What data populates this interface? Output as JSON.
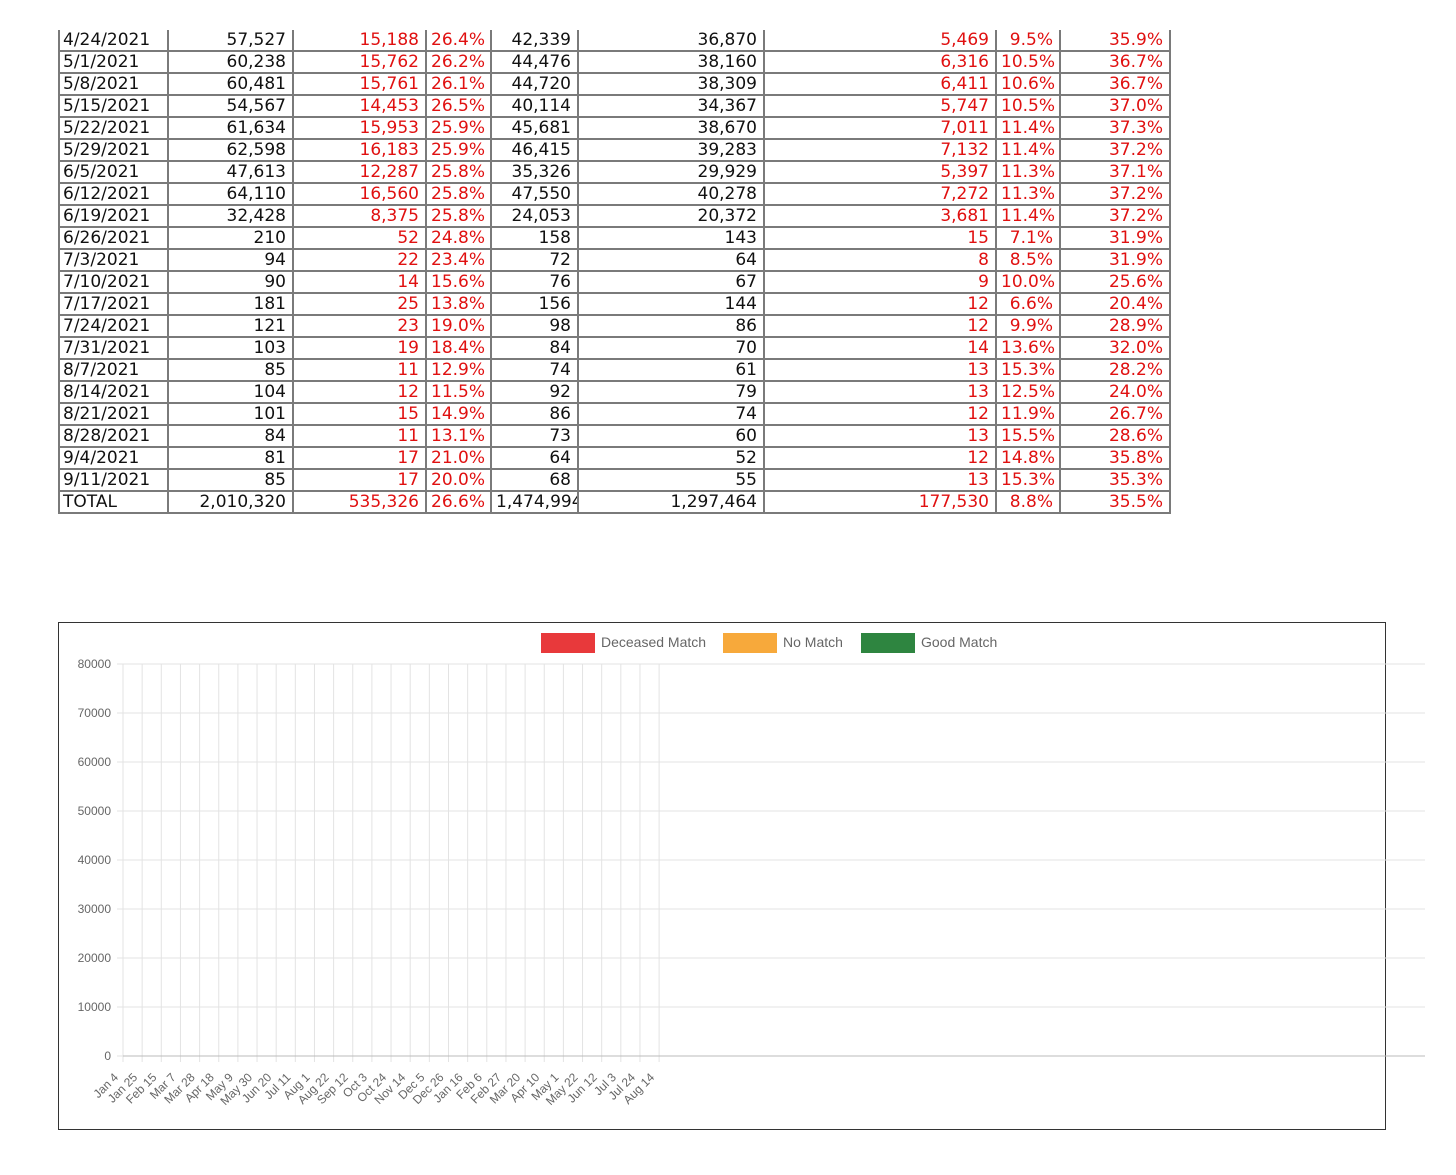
{
  "table": {
    "rows": [
      [
        "4/24/2021",
        "57,527",
        "15,188",
        "26.4%",
        "42,339",
        "36,870",
        "5,469",
        "9.5%",
        "35.9%"
      ],
      [
        "5/1/2021",
        "60,238",
        "15,762",
        "26.2%",
        "44,476",
        "38,160",
        "6,316",
        "10.5%",
        "36.7%"
      ],
      [
        "5/8/2021",
        "60,481",
        "15,761",
        "26.1%",
        "44,720",
        "38,309",
        "6,411",
        "10.6%",
        "36.7%"
      ],
      [
        "5/15/2021",
        "54,567",
        "14,453",
        "26.5%",
        "40,114",
        "34,367",
        "5,747",
        "10.5%",
        "37.0%"
      ],
      [
        "5/22/2021",
        "61,634",
        "15,953",
        "25.9%",
        "45,681",
        "38,670",
        "7,011",
        "11.4%",
        "37.3%"
      ],
      [
        "5/29/2021",
        "62,598",
        "16,183",
        "25.9%",
        "46,415",
        "39,283",
        "7,132",
        "11.4%",
        "37.2%"
      ],
      [
        "6/5/2021",
        "47,613",
        "12,287",
        "25.8%",
        "35,326",
        "29,929",
        "5,397",
        "11.3%",
        "37.1%"
      ],
      [
        "6/12/2021",
        "64,110",
        "16,560",
        "25.8%",
        "47,550",
        "40,278",
        "7,272",
        "11.3%",
        "37.2%"
      ],
      [
        "6/19/2021",
        "32,428",
        "8,375",
        "25.8%",
        "24,053",
        "20,372",
        "3,681",
        "11.4%",
        "37.2%"
      ],
      [
        "6/26/2021",
        "210",
        "52",
        "24.8%",
        "158",
        "143",
        "15",
        "7.1%",
        "31.9%"
      ],
      [
        "7/3/2021",
        "94",
        "22",
        "23.4%",
        "72",
        "64",
        "8",
        "8.5%",
        "31.9%"
      ],
      [
        "7/10/2021",
        "90",
        "14",
        "15.6%",
        "76",
        "67",
        "9",
        "10.0%",
        "25.6%"
      ],
      [
        "7/17/2021",
        "181",
        "25",
        "13.8%",
        "156",
        "144",
        "12",
        "6.6%",
        "20.4%"
      ],
      [
        "7/24/2021",
        "121",
        "23",
        "19.0%",
        "98",
        "86",
        "12",
        "9.9%",
        "28.9%"
      ],
      [
        "7/31/2021",
        "103",
        "19",
        "18.4%",
        "84",
        "70",
        "14",
        "13.6%",
        "32.0%"
      ],
      [
        "8/7/2021",
        "85",
        "11",
        "12.9%",
        "74",
        "61",
        "13",
        "15.3%",
        "28.2%"
      ],
      [
        "8/14/2021",
        "104",
        "12",
        "11.5%",
        "92",
        "79",
        "13",
        "12.5%",
        "24.0%"
      ],
      [
        "8/21/2021",
        "101",
        "15",
        "14.9%",
        "86",
        "74",
        "12",
        "11.9%",
        "26.7%"
      ],
      [
        "8/28/2021",
        "84",
        "11",
        "13.1%",
        "73",
        "60",
        "13",
        "15.5%",
        "28.6%"
      ],
      [
        "9/4/2021",
        "81",
        "17",
        "21.0%",
        "64",
        "52",
        "12",
        "14.8%",
        "35.8%"
      ],
      [
        "9/11/2021",
        "85",
        "17",
        "20.0%",
        "68",
        "55",
        "13",
        "15.3%",
        "35.3%"
      ],
      [
        "TOTAL",
        "2,010,320",
        "535,326",
        "26.6%",
        "1,474,994",
        "1,297,464",
        "177,530",
        "8.8%",
        "35.5%"
      ]
    ],
    "text_color": "#111111",
    "highlight_color": "#e01010"
  },
  "chart_data": {
    "type": "bar",
    "stacked": true,
    "title": "",
    "xlabel": "",
    "ylabel": "",
    "ylim": [
      0,
      80000
    ],
    "y_ticks": [
      0,
      10000,
      20000,
      30000,
      40000,
      50000,
      60000,
      70000,
      80000
    ],
    "grid": true,
    "legend_position": "top",
    "x_tick_labels": [
      "Jan 4",
      "Jan 25",
      "Feb 15",
      "Mar 7",
      "Mar 28",
      "Apr 18",
      "May 9",
      "May 30",
      "Jun 20",
      "Jul 11",
      "Aug 1",
      "Aug 22",
      "Sep 12",
      "Oct 3",
      "Oct 24",
      "Nov 14",
      "Dec 5",
      "Dec 26",
      "Jan 16",
      "Feb 6",
      "Feb 27",
      "Mar 20",
      "Apr 10",
      "May 1",
      "May 22",
      "Jun 12",
      "Jul 3",
      "Jul 24",
      "Aug 14"
    ],
    "series": [
      {
        "name": "Deceased Match",
        "color": "#e8393b",
        "values": [
          0,
          0,
          0,
          0,
          0,
          0,
          0,
          0,
          0,
          0,
          0,
          0,
          0,
          0,
          0,
          0,
          0,
          0,
          0,
          0,
          0,
          0,
          0,
          0,
          0,
          0,
          0,
          0,
          0,
          0,
          0,
          0,
          0,
          0,
          0,
          0,
          0,
          0,
          0,
          0,
          0,
          0,
          0,
          0,
          0,
          0,
          0,
          0,
          0,
          0,
          0,
          0,
          0,
          0,
          0,
          0,
          0,
          0,
          0,
          0,
          0,
          0,
          0,
          0,
          0,
          0,
          0,
          0,
          0,
          0,
          0,
          0,
          0,
          0,
          0,
          0,
          0,
          0,
          0,
          0,
          0,
          0,
          0,
          0,
          0,
          0,
          0,
          0,
          0,
          0,
          0,
          0,
          0,
          0,
          0,
          0,
          0,
          0,
          0,
          0,
          0,
          0,
          0,
          0,
          0,
          0,
          0,
          0,
          0,
          0,
          0,
          0,
          0,
          0,
          0,
          0,
          0,
          0,
          0,
          0,
          0,
          0,
          0,
          0,
          0,
          0,
          0,
          0,
          0,
          0,
          0,
          0,
          0,
          0,
          0,
          0,
          0,
          0,
          0,
          0,
          0,
          0,
          0,
          0,
          0,
          0,
          0,
          0,
          0,
          0,
          0,
          0,
          0,
          0,
          0,
          0,
          0,
          0,
          0,
          0,
          0,
          0,
          0,
          0,
          0,
          0,
          0,
          0,
          0,
          0,
          0,
          0,
          0,
          0,
          0,
          0,
          0,
          0,
          0,
          0,
          0,
          0,
          0,
          0,
          0,
          0,
          0,
          0,
          0,
          0,
          0,
          0,
          0,
          0,
          0,
          0,
          0,
          0,
          0,
          0,
          0,
          0,
          0,
          0
        ]
      }
    ]
  },
  "chart": {
    "legend": [
      {
        "label": "Deceased Match",
        "color": "#e8393b"
      },
      {
        "label": "No Match",
        "color": "#f7a93b"
      },
      {
        "label": "Good Match",
        "color": "#2e8540"
      }
    ]
  }
}
